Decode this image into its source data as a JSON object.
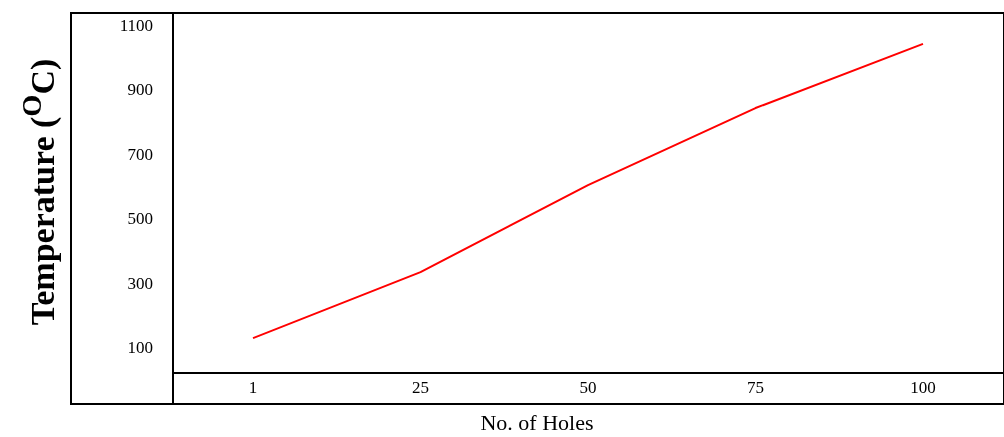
{
  "chart_data": {
    "type": "line",
    "xlabel": "No. of Holes",
    "ylabel": "Temperature ($^{O}$C)",
    "categories": [
      "1",
      "25",
      "50",
      "75",
      "100"
    ],
    "series": [
      {
        "color": "#ff0000",
        "values": [
          128,
          333,
          603,
          842,
          1041
        ]
      }
    ],
    "ylim": [
      20,
      1140
    ],
    "yticks": [
      100,
      300,
      500,
      700,
      900,
      1100
    ],
    "grid": false,
    "marker": "none",
    "line_style": "solid"
  }
}
